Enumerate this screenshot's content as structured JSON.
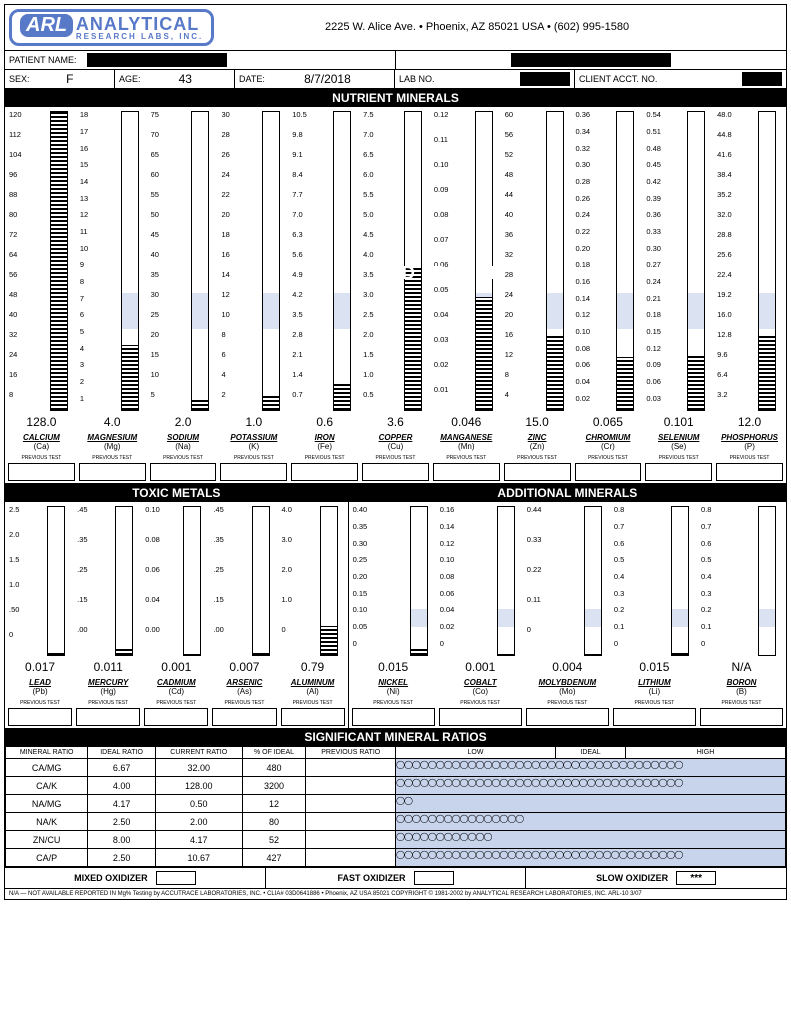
{
  "logo": {
    "abbr": "ARL",
    "name": "ANALYTICAL",
    "sub": "RESEARCH LABS, INC."
  },
  "address": "2225 W. Alice Ave.  •  Phoenix, AZ 85021 USA  •  (602) 995-1580",
  "patient_name_label": "PATIENT NAME:",
  "sex": {
    "label": "SEX:",
    "value": "F"
  },
  "age": {
    "label": "AGE:",
    "value": "43"
  },
  "date": {
    "label": "DATE:",
    "value": "8/7/2018"
  },
  "lab_no": {
    "label": "LAB NO."
  },
  "client_acct": {
    "label": "CLIENT ACCT. NO."
  },
  "sections": {
    "nutrient": "NUTRIENT MINERALS",
    "toxic": "TOXIC METALS",
    "additional": "ADDITIONAL MINERALS",
    "ratios": "SIGNIFICANT MINERAL RATIOS"
  },
  "ideal_text": "I D E A L",
  "prev_test_label": "PREVIOUS  TEST",
  "nutrients": [
    {
      "name": "CALCIUM",
      "sym": "(Ca)",
      "result": "128.0",
      "scale": [
        "120",
        "112",
        "104",
        "96",
        "88",
        "80",
        "72",
        "64",
        "56",
        "48",
        "40",
        "32",
        "24",
        "16",
        "8"
      ],
      "fill_pct": 100,
      "ideal_pct": 27
    },
    {
      "name": "MAGNESIUM",
      "sym": "(Mg)",
      "result": "4.0",
      "scale": [
        "18",
        "17",
        "16",
        "15",
        "14",
        "13",
        "12",
        "11",
        "10",
        "9",
        "8",
        "7",
        "6",
        "5",
        "4",
        "3",
        "2",
        "1"
      ],
      "fill_pct": 22,
      "ideal_pct": 33
    },
    {
      "name": "SODIUM",
      "sym": "(Na)",
      "result": "2.0",
      "scale": [
        "75",
        "70",
        "65",
        "60",
        "55",
        "50",
        "45",
        "40",
        "35",
        "30",
        "25",
        "20",
        "15",
        "10",
        "5"
      ],
      "fill_pct": 4,
      "ideal_pct": 33
    },
    {
      "name": "POTASSIUM",
      "sym": "(K)",
      "result": "1.0",
      "scale": [
        "30",
        "28",
        "26",
        "24",
        "22",
        "20",
        "18",
        "16",
        "14",
        "12",
        "10",
        "8",
        "6",
        "4",
        "2"
      ],
      "fill_pct": 5,
      "ideal_pct": 33
    },
    {
      "name": "IRON",
      "sym": "(Fe)",
      "result": "0.6",
      "scale": [
        "10.5",
        "9.8",
        "9.1",
        "8.4",
        "7.7",
        "7.0",
        "6.3",
        "5.6",
        "4.9",
        "4.2",
        "3.5",
        "2.8",
        "2.1",
        "1.4",
        "0.7"
      ],
      "fill_pct": 9,
      "ideal_pct": 33
    },
    {
      "name": "COPPER",
      "sym": "(Cu)",
      "result": "3.6",
      "scale": [
        "7.5",
        "7.0",
        "6.5",
        "6.0",
        "5.5",
        "5.0",
        "4.5",
        "4.0",
        "3.5",
        "3.0",
        "2.5",
        "2.0",
        "1.5",
        "1.0",
        "0.5"
      ],
      "fill_pct": 48,
      "ideal_pct": 33
    },
    {
      "name": "MANGANESE",
      "sym": "(Mn)",
      "result": "0.046",
      "scale": [
        "0.12",
        "0.11",
        "0.10",
        "0.09",
        "0.08",
        "0.07",
        "0.06",
        "0.05",
        "0.04",
        "0.03",
        "0.02",
        "0.01"
      ],
      "fill_pct": 38,
      "ideal_pct": 33
    },
    {
      "name": "ZINC",
      "sym": "(Zn)",
      "result": "15.0",
      "scale": [
        "60",
        "56",
        "52",
        "48",
        "44",
        "40",
        "36",
        "32",
        "28",
        "24",
        "20",
        "16",
        "12",
        "8",
        "4"
      ],
      "fill_pct": 25,
      "ideal_pct": 33
    },
    {
      "name": "CHROMIUM",
      "sym": "(Cr)",
      "result": "0.065",
      "scale": [
        "0.36",
        "0.34",
        "0.32",
        "0.30",
        "0.28",
        "0.26",
        "0.24",
        "0.22",
        "0.20",
        "0.18",
        "0.16",
        "0.14",
        "0.12",
        "0.10",
        "0.08",
        "0.06",
        "0.04",
        "0.02"
      ],
      "fill_pct": 18,
      "ideal_pct": 33
    },
    {
      "name": "SELENIUM",
      "sym": "(Se)",
      "result": "0.101",
      "scale": [
        "0.54",
        "0.51",
        "0.48",
        "0.45",
        "0.42",
        "0.39",
        "0.36",
        "0.33",
        "0.30",
        "0.27",
        "0.24",
        "0.21",
        "0.18",
        "0.15",
        "0.12",
        "0.09",
        "0.06",
        "0.03"
      ],
      "fill_pct": 19,
      "ideal_pct": 33
    },
    {
      "name": "PHOSPHORUS",
      "sym": "(P)",
      "result": "12.0",
      "scale": [
        "48.0",
        "44.8",
        "41.6",
        "38.4",
        "35.2",
        "32.0",
        "28.8",
        "25.6",
        "22.4",
        "19.2",
        "16.0",
        "12.8",
        "9.6",
        "6.4",
        "3.2"
      ],
      "fill_pct": 25,
      "ideal_pct": 33
    }
  ],
  "toxic_metals": [
    {
      "name": "LEAD",
      "sym": "(Pb)",
      "result": "0.017",
      "scale": [
        "2.5",
        "2.0",
        "1.5",
        "1.0",
        ".50",
        "0"
      ],
      "fill_pct": 2
    },
    {
      "name": "MERCURY",
      "sym": "(Hg)",
      "result": "0.011",
      "scale": [
        ".45",
        ".35",
        ".25",
        ".15",
        ".00"
      ],
      "fill_pct": 4
    },
    {
      "name": "CADMIUM",
      "sym": "(Cd)",
      "result": "0.001",
      "scale": [
        "0.10",
        "0.08",
        "0.06",
        "0.04",
        "0.00"
      ],
      "fill_pct": 1
    },
    {
      "name": "ARSENIC",
      "sym": "(As)",
      "result": "0.007",
      "scale": [
        ".45",
        ".35",
        ".25",
        ".15",
        ".00"
      ],
      "fill_pct": 2
    },
    {
      "name": "ALUMINUM",
      "sym": "(Al)",
      "result": "0.79",
      "scale": [
        "4.0",
        "3.0",
        "2.0",
        "1.0",
        "0"
      ],
      "fill_pct": 20
    }
  ],
  "addl_minerals": [
    {
      "name": "NICKEL",
      "sym": "(Ni)",
      "result": "0.015",
      "scale": [
        "0.40",
        "0.35",
        "0.30",
        "0.25",
        "0.20",
        "0.15",
        "0.10",
        "0.05",
        "0"
      ],
      "fill_pct": 4,
      "ideal_pct": 25
    },
    {
      "name": "COBALT",
      "sym": "(Co)",
      "result": "0.001",
      "scale": [
        "0.16",
        "0.14",
        "0.12",
        "0.10",
        "0.08",
        "0.06",
        "0.04",
        "0.02",
        "0"
      ],
      "fill_pct": 1,
      "ideal_pct": 25
    },
    {
      "name": "MOLYBDENUM",
      "sym": "(Mo)",
      "result": "0.004",
      "scale": [
        "0.44",
        "0.33",
        "0.22",
        "0.11",
        "0"
      ],
      "fill_pct": 1,
      "ideal_pct": 25
    },
    {
      "name": "LITHIUM",
      "sym": "(Li)",
      "result": "0.015",
      "scale": [
        "0.8",
        "0.7",
        "0.6",
        "0.5",
        "0.4",
        "0.3",
        "0.2",
        "0.1",
        "0"
      ],
      "fill_pct": 2,
      "ideal_pct": 25
    },
    {
      "name": "BORON",
      "sym": "(B)",
      "result": "N/A",
      "scale": [
        "0.8",
        "0.7",
        "0.6",
        "0.5",
        "0.4",
        "0.3",
        "0.2",
        "0.1",
        "0"
      ],
      "fill_pct": 0,
      "ideal_pct": 25
    }
  ],
  "ratio_headers": [
    "MINERAL RATIO",
    "IDEAL RATIO",
    "CURRENT RATIO",
    "% OF IDEAL",
    "PREVIOUS RATIO",
    "LOW",
    "IDEAL",
    "HIGH"
  ],
  "ratios": [
    {
      "name": "CA/MG",
      "ideal": "6.67",
      "current": "32.00",
      "pct": "480",
      "bars": 18
    },
    {
      "name": "CA/K",
      "ideal": "4.00",
      "current": "128.00",
      "pct": "3200",
      "bars": 18
    },
    {
      "name": "NA/MG",
      "ideal": "4.17",
      "current": "0.50",
      "pct": "12",
      "bars": 1
    },
    {
      "name": "NA/K",
      "ideal": "2.50",
      "current": "2.00",
      "pct": "80",
      "bars": 8
    },
    {
      "name": "ZN/CU",
      "ideal": "8.00",
      "current": "4.17",
      "pct": "52",
      "bars": 6
    },
    {
      "name": "CA/P",
      "ideal": "2.50",
      "current": "10.67",
      "pct": "427",
      "bars": 18
    }
  ],
  "oxidizer": {
    "mixed": "MIXED OXIDIZER",
    "fast": "FAST OXIDIZER",
    "slow": "SLOW OXIDIZER",
    "slow_val": "***"
  },
  "footer": "N/A — NOT AVAILABLE   REPORTED IN Mg%   Testing by ACCUTRACE LABORATORIES, INC. • CLIA# 03D0641886 • Phoenix, AZ USA 85021   COPYRIGHT © 1981-2002 by ANALYTICAL RESEARCH LABORATORIES, INC.   ARL-10  3/07",
  "colors": {
    "band": "#b8c8e8",
    "logo": "#5878c8"
  }
}
